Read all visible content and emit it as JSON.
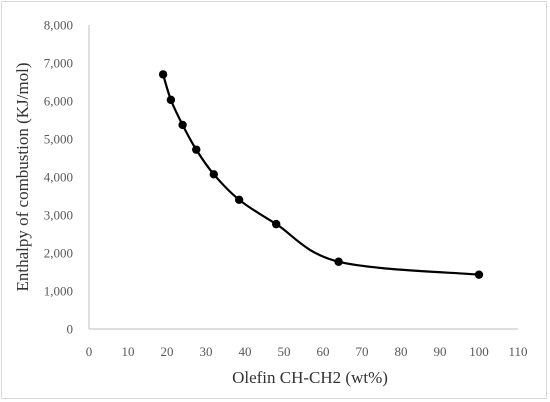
{
  "chart_data": {
    "type": "line",
    "title": "",
    "xlabel": "Olefin CH-CH2 (wt%)",
    "ylabel": "Enthalpy of combustion (KJ/mol)",
    "xlim": [
      0,
      110
    ],
    "ylim": [
      0,
      8000
    ],
    "x_ticks": [
      "0",
      "10",
      "20",
      "30",
      "40",
      "50",
      "60",
      "70",
      "80",
      "90",
      "100",
      "110"
    ],
    "y_ticks": [
      "0",
      "1,000",
      "2,000",
      "3,000",
      "4,000",
      "5,000",
      "6,000",
      "7,000",
      "8,000"
    ],
    "grid": false,
    "legend": "none",
    "series": [
      {
        "x": [
          19,
          21,
          24,
          27.5,
          32,
          38.5,
          48,
          64,
          100
        ],
        "y": [
          6700,
          6030,
          5370,
          4720,
          4070,
          3400,
          2760,
          1770,
          1430
        ],
        "color": "#000000",
        "marker": "circle",
        "smooth": true
      }
    ]
  }
}
